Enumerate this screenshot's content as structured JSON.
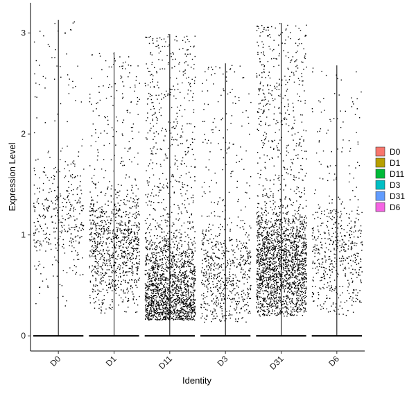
{
  "chart_data": {
    "type": "scatter",
    "subtype": "violin-jitter",
    "xlabel": "Identity",
    "ylabel": "Expression Level",
    "categories": [
      "D0",
      "D1",
      "D11",
      "D3",
      "D31",
      "D6"
    ],
    "ylim": [
      -0.15,
      3.3
    ],
    "yticks": [
      "0",
      "1",
      "2",
      "3"
    ],
    "grid": false,
    "legend_position": "right",
    "legend": [
      {
        "label": "D0",
        "color": "#F8766D"
      },
      {
        "label": "D1",
        "color": "#B79F00"
      },
      {
        "label": "D11",
        "color": "#00BA38"
      },
      {
        "label": "D3",
        "color": "#00BFC4"
      },
      {
        "label": "D31",
        "color": "#619CFF"
      },
      {
        "label": "D6",
        "color": "#F564E3"
      }
    ],
    "series": [
      {
        "category": "D0",
        "max": 3.13,
        "nonzero_min": 0.28,
        "n_points": 420,
        "mode_y": 1.2
      },
      {
        "category": "D1",
        "max": 2.81,
        "nonzero_min": 0.22,
        "n_points": 1050,
        "mode_y": 0.9
      },
      {
        "category": "D11",
        "max": 2.99,
        "nonzero_min": 0.16,
        "n_points": 2100,
        "mode_y": 0.45
      },
      {
        "category": "D3",
        "max": 2.7,
        "nonzero_min": 0.14,
        "n_points": 720,
        "mode_y": 0.6
      },
      {
        "category": "D31",
        "max": 3.1,
        "nonzero_min": 0.2,
        "n_points": 2300,
        "mode_y": 0.7
      },
      {
        "category": "D6",
        "max": 2.68,
        "nonzero_min": 0.2,
        "n_points": 560,
        "mode_y": 0.8
      }
    ],
    "point_color": "#000000"
  }
}
